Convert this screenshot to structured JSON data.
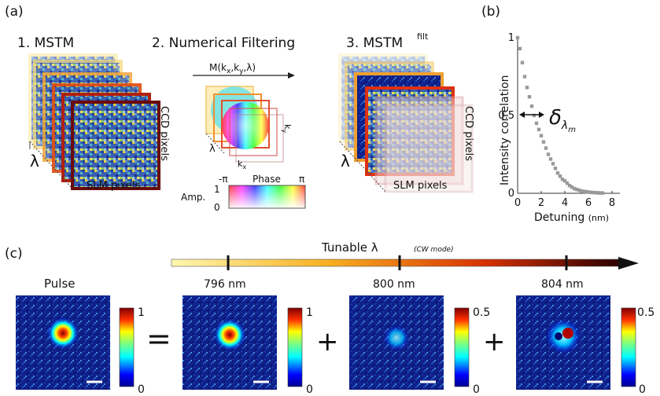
{
  "panel_a": {
    "label": "(a)",
    "step1_title": "1. MSTM",
    "step2_title": "2. Numerical Filtering",
    "step3_title": "3. MSTM",
    "step3_sup": "filt",
    "filter_label": "M(k",
    "filter_sub_x": "x",
    "filter_sep1": ",k",
    "filter_sub_y": "y",
    "filter_end": ",λ)",
    "axis_ccd": "CCD pixels",
    "axis_slm": "SLM pixels",
    "axis_lambda": "λ",
    "kx_label": "k",
    "kx_sub": "x",
    "ky_label": "k",
    "ky_sub": "y",
    "lambda_small": "λ",
    "amp_label": "Amp.",
    "amp_1": "1",
    "amp_0": "0",
    "phase_label": "Phase",
    "phase_min": "-π",
    "phase_max": "π"
  },
  "panel_b": {
    "label": "(b)",
    "delta_symbol": "δ",
    "delta_sub": "λ",
    "delta_subsub": "m"
  },
  "panel_c": {
    "label": "(c)",
    "tunable_label": "Tunable λ",
    "cw_mode": "(CW mode)",
    "pulse_label": "Pulse",
    "wavelengths": [
      "796 nm",
      "800 nm",
      "804 nm"
    ],
    "equals": "=",
    "plus": "+",
    "colorbars": [
      {
        "max": "1",
        "min": "0"
      },
      {
        "max": "1",
        "min": "0"
      },
      {
        "max": "0.5",
        "min": "0"
      },
      {
        "max": "0.5",
        "min": "0"
      }
    ]
  },
  "chart_data": {
    "type": "scatter",
    "xlabel": "Detuning",
    "xunit": "(nm)",
    "ylabel": "Intensity correlation",
    "xlim": [
      0,
      8
    ],
    "ylim": [
      0,
      1
    ],
    "xticks": [
      "0",
      "2",
      "4",
      "6",
      "8"
    ],
    "yticks": [
      "0",
      "0.5",
      "1"
    ],
    "series": [
      {
        "color": "#999999",
        "x": [
          0,
          0.2,
          0.4,
          0.6,
          0.8,
          1.0,
          1.2,
          1.4,
          1.6,
          1.8,
          2.0,
          2.2,
          2.4,
          2.6,
          2.8,
          3.0,
          3.2,
          3.4,
          3.6,
          3.8,
          4.0,
          4.2,
          4.4,
          4.6,
          4.8,
          5.0,
          5.2,
          5.4,
          5.6,
          5.8,
          6.0,
          6.2,
          6.4,
          6.6,
          6.8,
          7.0,
          7.2
        ],
        "y": [
          1.0,
          0.93,
          0.84,
          0.75,
          0.68,
          0.62,
          0.56,
          0.5,
          0.45,
          0.41,
          0.37,
          0.33,
          0.29,
          0.25,
          0.22,
          0.19,
          0.16,
          0.13,
          0.11,
          0.09,
          0.08,
          0.065,
          0.05,
          0.04,
          0.03,
          0.025,
          0.02,
          0.015,
          0.012,
          0.01,
          0.008,
          0.006,
          0.005,
          0.004,
          0.003,
          0.002,
          0.002
        ]
      }
    ]
  }
}
